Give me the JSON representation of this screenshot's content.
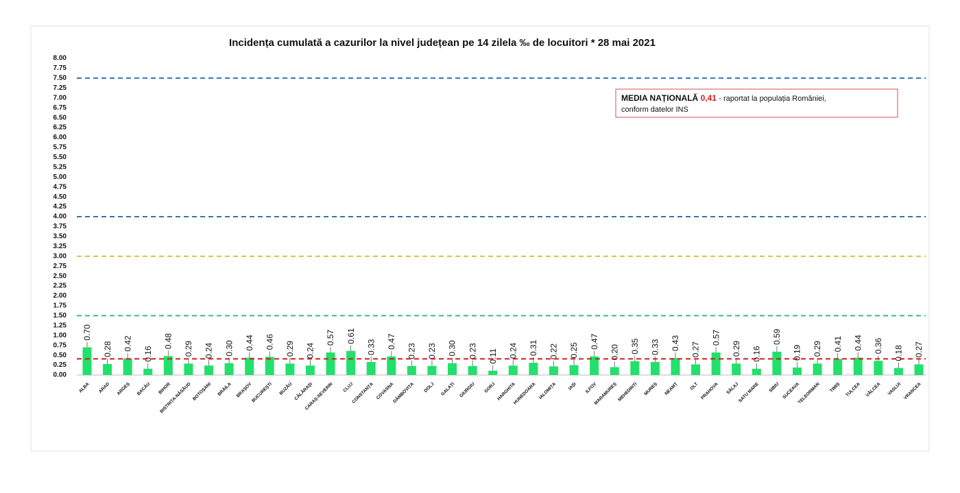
{
  "chart_data": {
    "type": "bar",
    "title": "Incidența cumulată a cazurilor la nivel județean pe 14 zilela ‰ de locuitori *  28 mai 2021",
    "categories": [
      "ALBA",
      "ARAD",
      "ARGEȘ",
      "BACĂU",
      "BIHOR",
      "BISTRIȚA-NĂSĂUD",
      "BOTOȘANI",
      "BRĂILA",
      "BRAȘOV",
      "BUCUREȘTI",
      "BUZĂU",
      "CĂLĂRAȘI",
      "CARAȘ-SEVERIN",
      "CLUJ",
      "CONSTANȚA",
      "COVASNA",
      "DÂMBOVIȚA",
      "DOLJ",
      "GALAȚI",
      "GIURGIU",
      "GORJ",
      "HARGHITA",
      "HUNEDOARA",
      "IALOMIȚA",
      "IAȘI",
      "ILFOV",
      "MARAMUREȘ",
      "MEHEDINȚI",
      "MUREȘ",
      "NEAMȚ",
      "OLT",
      "PRAHOVA",
      "SĂLAJ",
      "SATU MARE",
      "SIBIU",
      "SUCEAVA",
      "TELEORMAN",
      "TIMIȘ",
      "TULCEA",
      "VÂLCEA",
      "VASLUI",
      "VRANCEA"
    ],
    "values": [
      0.7,
      0.28,
      0.42,
      0.16,
      0.48,
      0.29,
      0.24,
      0.3,
      0.44,
      0.46,
      0.29,
      0.24,
      0.57,
      0.61,
      0.33,
      0.47,
      0.23,
      0.23,
      0.3,
      0.23,
      0.11,
      0.24,
      0.31,
      0.22,
      0.25,
      0.47,
      0.2,
      0.35,
      0.33,
      0.43,
      0.27,
      0.57,
      0.29,
      0.16,
      0.59,
      0.19,
      0.29,
      0.41,
      0.44,
      0.36,
      0.18,
      0.27
    ],
    "value_labels": [
      "0.70",
      "0.28",
      "0.42",
      "0.16",
      "0.48",
      "0.29",
      "0.24",
      "0.30",
      "0.44",
      "0.46",
      "0.29",
      "0.24",
      "0.57",
      "0.61",
      "0.33",
      "0.47",
      "0.23",
      "0.23",
      "0.30",
      "0.23",
      "0.11",
      "0.24",
      "0.31",
      "0.22",
      "0.25",
      "0.47",
      "0.20",
      "0.35",
      "0.33",
      "0.43",
      "0.27",
      "0.57",
      "0.29",
      "0.16",
      "0.59",
      "0.19",
      "0.29",
      "0.41",
      "0.44",
      "0.36",
      "0.18",
      "0.27"
    ],
    "color": "#22e06b",
    "ylim": [
      0,
      8
    ],
    "yticks": [
      {
        "value": 0,
        "label": "0.00"
      },
      {
        "value": 0.25,
        "label": "0.25"
      },
      {
        "value": 0.5,
        "label": "0.50"
      },
      {
        "value": 0.75,
        "label": "0.75"
      },
      {
        "value": 1,
        "label": "1.00"
      },
      {
        "value": 1.25,
        "label": "1.25"
      },
      {
        "value": 1.5,
        "label": "1.50"
      },
      {
        "value": 1.75,
        "label": "1.75"
      },
      {
        "value": 2,
        "label": "2.00"
      },
      {
        "value": 2.25,
        "label": "2.25"
      },
      {
        "value": 2.5,
        "label": "2.50"
      },
      {
        "value": 2.75,
        "label": "2.75"
      },
      {
        "value": 3,
        "label": "3.00"
      },
      {
        "value": 3.25,
        "label": "3.25"
      },
      {
        "value": 3.5,
        "label": "3.50"
      },
      {
        "value": 3.75,
        "label": "3.75"
      },
      {
        "value": 4,
        "label": "4.00"
      },
      {
        "value": 4.25,
        "label": "4.25"
      },
      {
        "value": 4.5,
        "label": "4.50"
      },
      {
        "value": 4.75,
        "label": "4.75"
      },
      {
        "value": 5,
        "label": "5.00"
      },
      {
        "value": 5.25,
        "label": "5.25"
      },
      {
        "value": 5.5,
        "label": "5.50"
      },
      {
        "value": 5.75,
        "label": "5.75"
      },
      {
        "value": 6,
        "label": "6.00"
      },
      {
        "value": 6.25,
        "label": "6.25"
      },
      {
        "value": 6.5,
        "label": "6.50"
      },
      {
        "value": 6.75,
        "label": "6.75"
      },
      {
        "value": 7,
        "label": "7.00"
      },
      {
        "value": 7.25,
        "label": "7.25"
      },
      {
        "value": 7.5,
        "label": "7.50"
      },
      {
        "value": 7.75,
        "label": "7.75"
      },
      {
        "value": 8,
        "label": "8.00"
      }
    ],
    "grid": false,
    "reference_lines": [
      {
        "value": 7.5,
        "color": "#2e75b6"
      },
      {
        "value": 4.0,
        "color": "#2e75b6"
      },
      {
        "value": 3.0,
        "color": "#d4c23a"
      },
      {
        "value": 1.5,
        "color": "#3cb88a"
      }
    ],
    "average": {
      "title": "MEDIA NAȚIONALĂ",
      "value": 0.41,
      "label": "0,41",
      "color": "#d01c1c",
      "text": "- raportat la populația României,",
      "text2": "conform datelor INS"
    }
  }
}
